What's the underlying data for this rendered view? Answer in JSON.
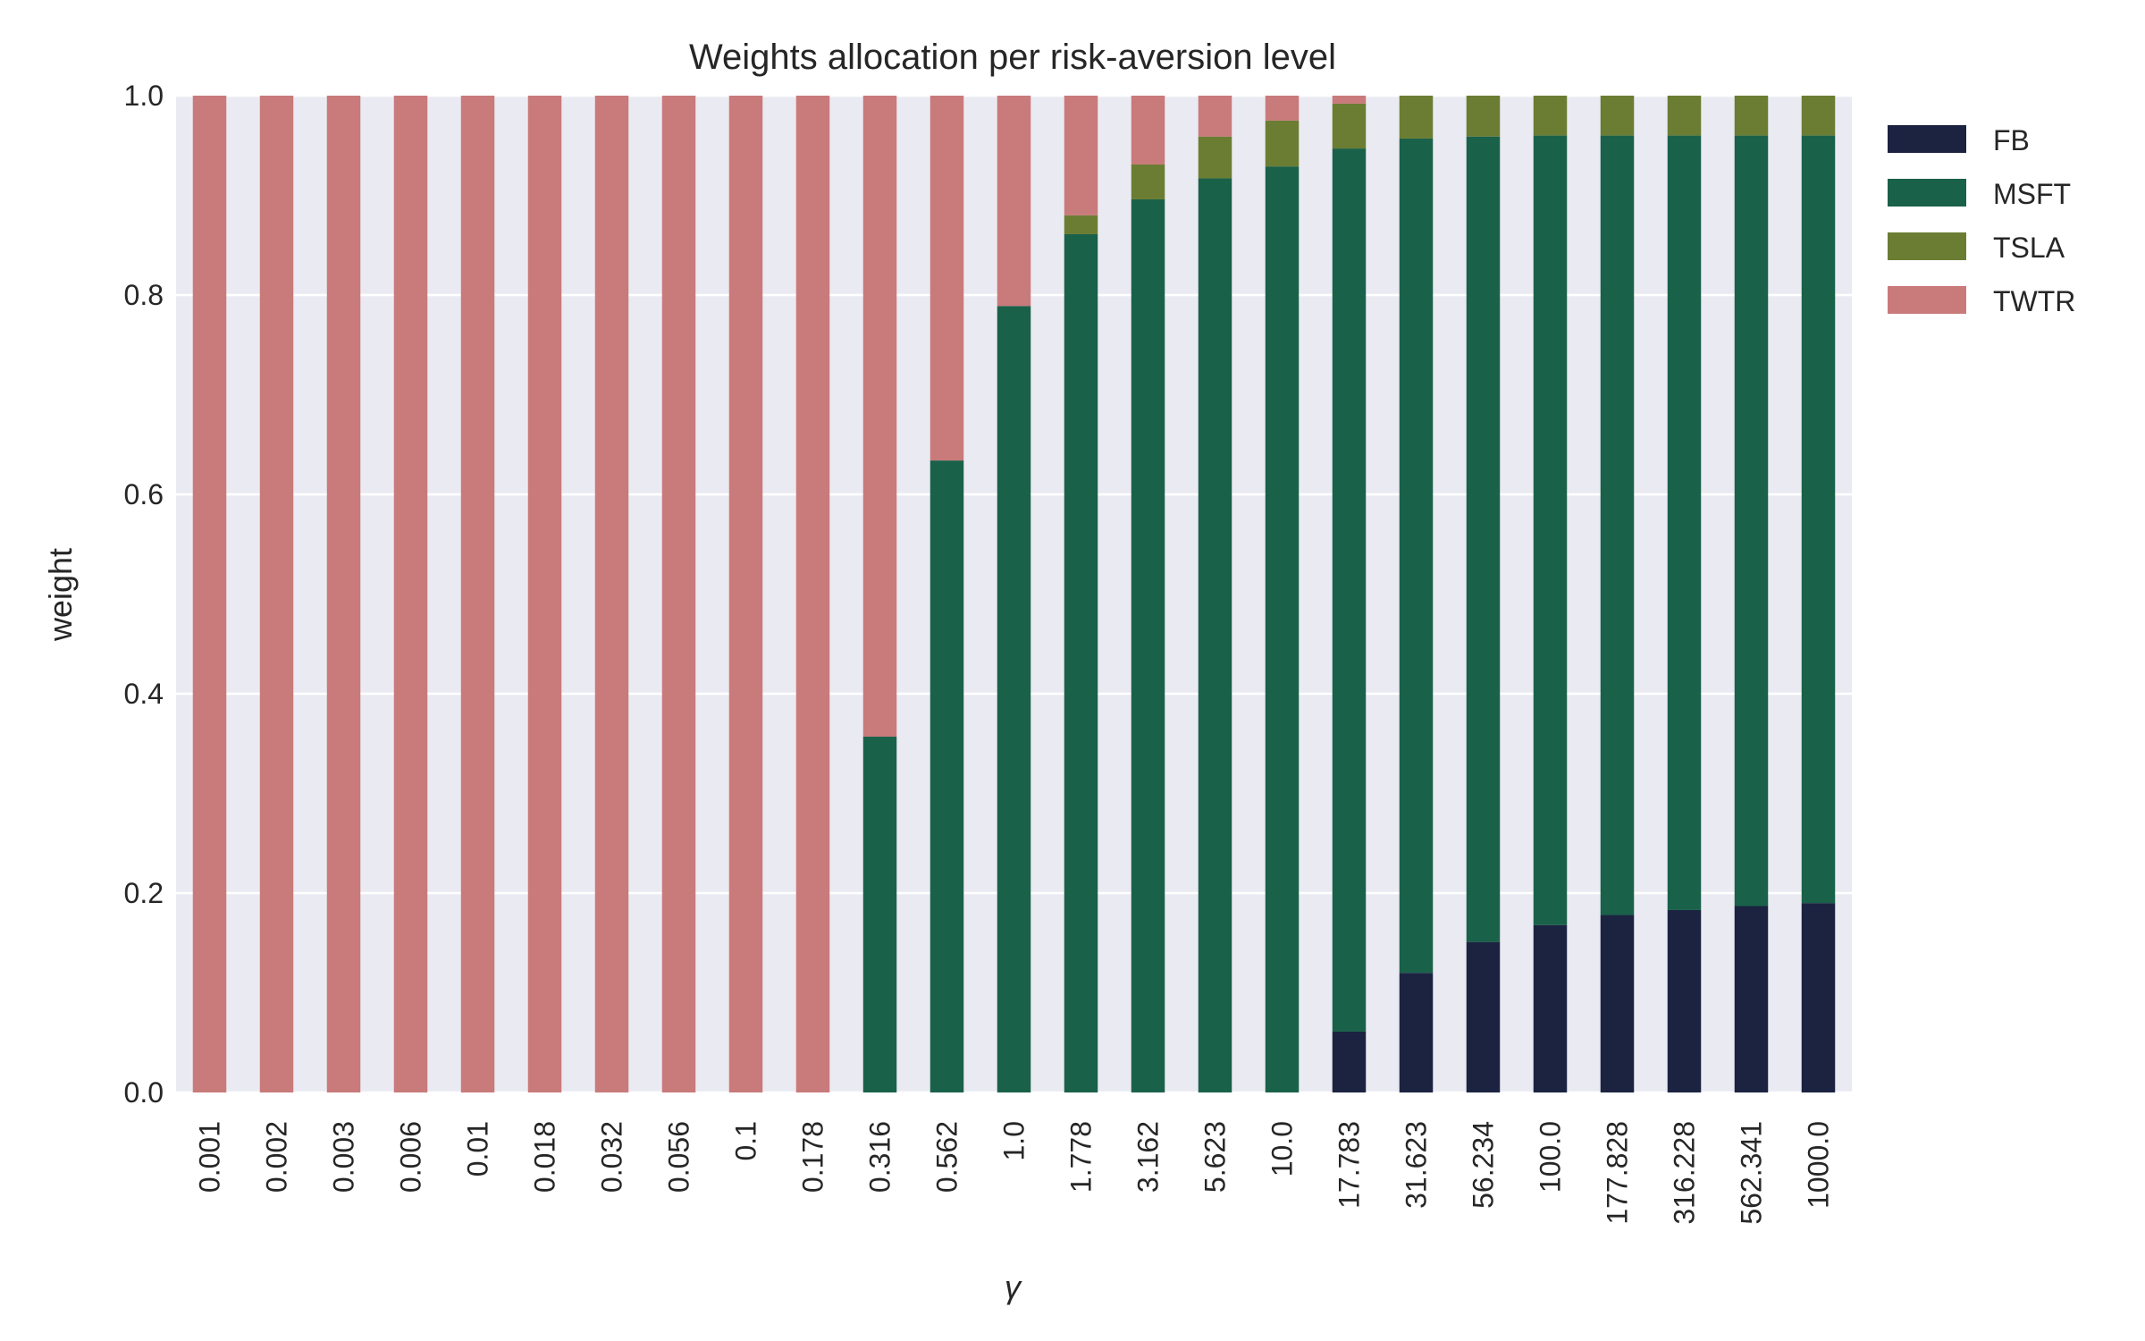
{
  "chart_data": {
    "type": "bar",
    "stacked": true,
    "title": "Weights allocation per risk-aversion level",
    "xlabel": "γ",
    "ylabel": "weight",
    "ylim": [
      0,
      1.0
    ],
    "yticks": [
      "0.0",
      "0.2",
      "0.4",
      "0.6",
      "0.8",
      "1.0"
    ],
    "grid": true,
    "legend_position": "upper right, outside plot",
    "categories": [
      "0.001",
      "0.002",
      "0.003",
      "0.006",
      "0.01",
      "0.018",
      "0.032",
      "0.056",
      "0.1",
      "0.178",
      "0.316",
      "0.562",
      "1.0",
      "1.778",
      "3.162",
      "5.623",
      "10.0",
      "17.783",
      "31.623",
      "56.234",
      "100.0",
      "177.828",
      "316.228",
      "562.341",
      "1000.0"
    ],
    "series": [
      {
        "name": "FB",
        "color": "#1b2341",
        "values": [
          0,
          0,
          0,
          0,
          0,
          0,
          0,
          0,
          0,
          0,
          0,
          0,
          0,
          0,
          0,
          0,
          0,
          0.061,
          0.12,
          0.151,
          0.168,
          0.178,
          0.183,
          0.187,
          0.19
        ]
      },
      {
        "name": "MSFT",
        "color": "#1a614a",
        "values": [
          0,
          0,
          0,
          0,
          0,
          0,
          0,
          0,
          0,
          0,
          0.357,
          0.634,
          0.789,
          0.861,
          0.896,
          0.917,
          0.929,
          0.886,
          0.837,
          0.808,
          0.792,
          0.782,
          0.777,
          0.773,
          0.77
        ]
      },
      {
        "name": "TSLA",
        "color": "#6b7d33",
        "values": [
          0,
          0,
          0,
          0,
          0,
          0,
          0,
          0,
          0,
          0,
          0,
          0,
          0,
          0.019,
          0.035,
          0.042,
          0.046,
          0.045,
          0.043,
          0.041,
          0.04,
          0.04,
          0.04,
          0.04,
          0.04
        ]
      },
      {
        "name": "TWTR",
        "color": "#c97a7b",
        "values": [
          1,
          1,
          1,
          1,
          1,
          1,
          1,
          1,
          1,
          1,
          0.643,
          0.366,
          0.211,
          0.12,
          0.069,
          0.041,
          0.025,
          0.008,
          0,
          0,
          0,
          0,
          0,
          0,
          0
        ]
      }
    ],
    "colors": {
      "plot_background": "#eaeaf2",
      "grid": "#ffffff",
      "text": "#262626"
    }
  }
}
